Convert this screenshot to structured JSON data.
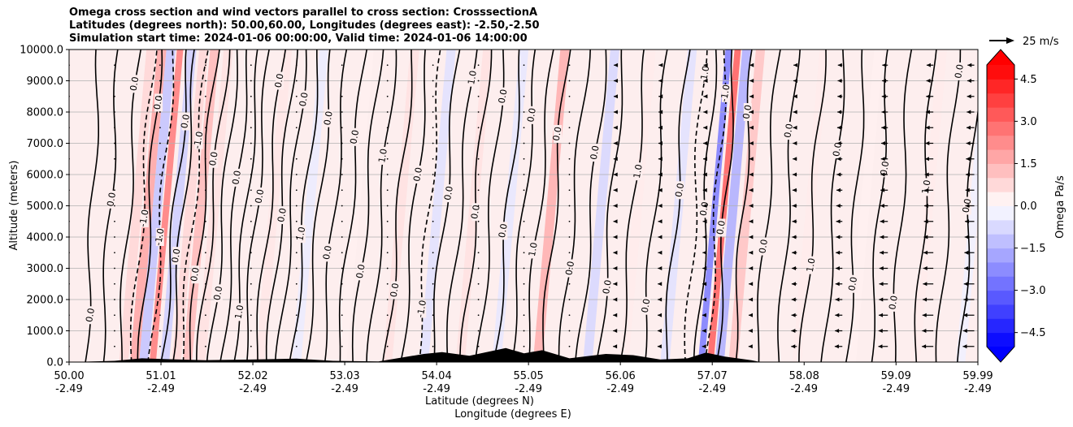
{
  "title": {
    "line1": "Omega cross section and wind vectors parallel to cross section: CrosssectionA",
    "line2": "Latitudes (degrees north): 50.00,60.00, Longitudes (degrees east): -2.50,-2.50",
    "line3": "Simulation start time: 2024-01-06 00:00:00, Valid time: 2024-01-06 14:00:00"
  },
  "chart_data": {
    "type": "heatmap",
    "subtype": "vertical cross section with contour lines and wind vectors",
    "xlabel_line1": "Latitude (degrees N)",
    "xlabel_line2": "Longitude (degrees E)",
    "ylabel": "Altitude (meters)",
    "ylim": [
      0,
      10000
    ],
    "xlim": [
      50.0,
      59.99
    ],
    "y_ticks": [
      0,
      1000,
      2000,
      3000,
      4000,
      5000,
      6000,
      7000,
      8000,
      9000,
      10000
    ],
    "y_tick_labels": [
      "0.0",
      "1000.0",
      "2000.0",
      "3000.0",
      "4000.0",
      "5000.0",
      "6000.0",
      "7000.0",
      "8000.0",
      "9000.0",
      "10000.0"
    ],
    "x_ticks": [
      {
        "lat": 50.0,
        "lat_label": "50.00",
        "lon_label": "-2.49"
      },
      {
        "lat": 51.01,
        "lat_label": "51.01",
        "lon_label": "-2.49"
      },
      {
        "lat": 52.02,
        "lat_label": "52.02",
        "lon_label": "-2.49"
      },
      {
        "lat": 53.03,
        "lat_label": "53.03",
        "lon_label": "-2.49"
      },
      {
        "lat": 54.04,
        "lat_label": "54.04",
        "lon_label": "-2.49"
      },
      {
        "lat": 55.05,
        "lat_label": "55.05",
        "lon_label": "-2.49"
      },
      {
        "lat": 56.06,
        "lat_label": "56.06",
        "lon_label": "-2.49"
      },
      {
        "lat": 57.07,
        "lat_label": "57.07",
        "lon_label": "-2.49"
      },
      {
        "lat": 58.08,
        "lat_label": "58.08",
        "lon_label": "-2.49"
      },
      {
        "lat": 59.09,
        "lat_label": "59.09",
        "lon_label": "-2.49"
      },
      {
        "lat": 59.99,
        "lat_label": "59.99",
        "lon_label": "-2.49"
      }
    ],
    "grid": "horizontal",
    "colorbar": {
      "label": "Omega Pa/s",
      "range": [
        -5.0,
        5.0
      ],
      "extend": "both",
      "ticks": [
        -4.5,
        -3.0,
        -1.5,
        0.0,
        1.5,
        3.0,
        4.5
      ],
      "tick_labels": [
        "−4.5",
        "−3.0",
        "−1.5",
        "0.0",
        "1.5",
        "3.0",
        "4.5"
      ],
      "n_levels": 20,
      "colormap": "bwr"
    },
    "quiver_key": {
      "label": "25 m/s",
      "speed": 25
    },
    "contour_labels": [
      "0.0",
      "1.0",
      "-1.0",
      "2.0"
    ],
    "bands": [
      {
        "lat": 50.6,
        "value": 0.8
      },
      {
        "lat": 50.72,
        "value": 1.8
      },
      {
        "lat": 50.82,
        "value": -1.2
      },
      {
        "lat": 50.92,
        "value": 2.6
      },
      {
        "lat": 51.05,
        "value": -1.0
      },
      {
        "lat": 51.18,
        "value": 0.8
      },
      {
        "lat": 51.3,
        "value": 1.4
      },
      {
        "lat": 51.45,
        "value": 0.6
      },
      {
        "lat": 52.1,
        "value": 0.5
      },
      {
        "lat": 52.5,
        "value": -0.4
      },
      {
        "lat": 53.0,
        "value": 0.3
      },
      {
        "lat": 53.5,
        "value": 0.6
      },
      {
        "lat": 53.9,
        "value": -0.6
      },
      {
        "lat": 54.3,
        "value": 0.6
      },
      {
        "lat": 54.7,
        "value": -0.5
      },
      {
        "lat": 55.15,
        "value": 1.6
      },
      {
        "lat": 55.7,
        "value": -0.8
      },
      {
        "lat": 56.1,
        "value": 0.4
      },
      {
        "lat": 56.55,
        "value": -0.6
      },
      {
        "lat": 56.95,
        "value": -2.6
      },
      {
        "lat": 57.05,
        "value": 3.2
      },
      {
        "lat": 57.15,
        "value": -1.6
      },
      {
        "lat": 57.3,
        "value": 1.2
      },
      {
        "lat": 58.0,
        "value": 0.4
      },
      {
        "lat": 58.6,
        "value": 0.3
      },
      {
        "lat": 59.3,
        "value": 0.4
      },
      {
        "lat": 59.8,
        "value": -0.3
      }
    ],
    "contour_lines": [
      {
        "lat": 50.18,
        "tilt": 0.15,
        "dashed": false
      },
      {
        "lat": 50.35,
        "tilt": 0.2,
        "dashed": false
      },
      {
        "lat": 50.55,
        "tilt": 0.22,
        "dashed": false
      },
      {
        "lat": 50.68,
        "tilt": 0.25,
        "dashed": true
      },
      {
        "lat": 50.78,
        "tilt": 0.22,
        "dashed": false
      },
      {
        "lat": 50.9,
        "tilt": 0.25,
        "dashed": true
      },
      {
        "lat": 51.02,
        "tilt": 0.3,
        "dashed": false
      },
      {
        "lat": 51.12,
        "tilt": 0.28,
        "dashed": false
      },
      {
        "lat": 51.22,
        "tilt": 0.3,
        "dashed": true
      },
      {
        "lat": 51.32,
        "tilt": 0.3,
        "dashed": false
      },
      {
        "lat": 51.42,
        "tilt": 0.32,
        "dashed": false
      },
      {
        "lat": 51.55,
        "tilt": 0.3,
        "dashed": false
      },
      {
        "lat": 51.68,
        "tilt": 0.3,
        "dashed": false
      },
      {
        "lat": 51.8,
        "tilt": 0.3,
        "dashed": false
      },
      {
        "lat": 51.92,
        "tilt": 0.28,
        "dashed": false
      },
      {
        "lat": 52.05,
        "tilt": 0.3,
        "dashed": false
      },
      {
        "lat": 52.18,
        "tilt": 0.3,
        "dashed": false
      },
      {
        "lat": 52.3,
        "tilt": 0.3,
        "dashed": false
      },
      {
        "lat": 52.45,
        "tilt": 0.3,
        "dashed": false
      },
      {
        "lat": 52.6,
        "tilt": 0.3,
        "dashed": false
      },
      {
        "lat": 52.78,
        "tilt": 0.28,
        "dashed": false
      },
      {
        "lat": 52.95,
        "tilt": 0.3,
        "dashed": false
      },
      {
        "lat": 53.12,
        "tilt": 0.3,
        "dashed": false
      },
      {
        "lat": 53.3,
        "tilt": 0.28,
        "dashed": false
      },
      {
        "lat": 53.48,
        "tilt": 0.3,
        "dashed": false
      },
      {
        "lat": 53.65,
        "tilt": 0.3,
        "dashed": false
      },
      {
        "lat": 53.82,
        "tilt": 0.28,
        "dashed": true
      },
      {
        "lat": 53.98,
        "tilt": 0.3,
        "dashed": false
      },
      {
        "lat": 54.15,
        "tilt": 0.3,
        "dashed": false
      },
      {
        "lat": 54.32,
        "tilt": 0.3,
        "dashed": false
      },
      {
        "lat": 54.5,
        "tilt": 0.28,
        "dashed": false
      },
      {
        "lat": 54.68,
        "tilt": 0.3,
        "dashed": false
      },
      {
        "lat": 54.85,
        "tilt": 0.3,
        "dashed": false
      },
      {
        "lat": 55.02,
        "tilt": 0.3,
        "dashed": false
      },
      {
        "lat": 55.2,
        "tilt": 0.28,
        "dashed": false
      },
      {
        "lat": 55.4,
        "tilt": 0.3,
        "dashed": false
      },
      {
        "lat": 55.6,
        "tilt": 0.3,
        "dashed": false
      },
      {
        "lat": 55.82,
        "tilt": 0.28,
        "dashed": false
      },
      {
        "lat": 56.05,
        "tilt": 0.3,
        "dashed": false
      },
      {
        "lat": 56.3,
        "tilt": 0.28,
        "dashed": false
      },
      {
        "lat": 56.55,
        "tilt": 0.25,
        "dashed": false
      },
      {
        "lat": 56.78,
        "tilt": 0.2,
        "dashed": true
      },
      {
        "lat": 56.9,
        "tilt": 0.2,
        "dashed": false
      },
      {
        "lat": 57.02,
        "tilt": 0.2,
        "dashed": true
      },
      {
        "lat": 57.12,
        "tilt": 0.2,
        "dashed": false
      },
      {
        "lat": 57.3,
        "tilt": 0.22,
        "dashed": false
      },
      {
        "lat": 57.55,
        "tilt": 0.25,
        "dashed": false
      },
      {
        "lat": 57.8,
        "tilt": 0.2,
        "dashed": false
      },
      {
        "lat": 58.05,
        "tilt": 0.25,
        "dashed": false
      },
      {
        "lat": 58.3,
        "tilt": 0.22,
        "dashed": false
      },
      {
        "lat": 58.55,
        "tilt": 0.2,
        "dashed": false
      },
      {
        "lat": 58.8,
        "tilt": 0.22,
        "dashed": false
      },
      {
        "lat": 59.05,
        "tilt": 0.2,
        "dashed": false
      },
      {
        "lat": 59.3,
        "tilt": 0.2,
        "dashed": false
      },
      {
        "lat": 59.55,
        "tilt": 0.22,
        "dashed": false
      },
      {
        "lat": 59.8,
        "tilt": 0.2,
        "dashed": false
      }
    ],
    "terrain": [
      {
        "lat": 50.0,
        "alt": 0
      },
      {
        "lat": 50.5,
        "alt": 40
      },
      {
        "lat": 50.8,
        "alt": 120
      },
      {
        "lat": 51.1,
        "alt": 90
      },
      {
        "lat": 51.5,
        "alt": 60
      },
      {
        "lat": 52.0,
        "alt": 80
      },
      {
        "lat": 52.5,
        "alt": 110
      },
      {
        "lat": 52.9,
        "alt": 40
      },
      {
        "lat": 53.4,
        "alt": 20
      },
      {
        "lat": 53.9,
        "alt": 260
      },
      {
        "lat": 54.1,
        "alt": 320
      },
      {
        "lat": 54.4,
        "alt": 200
      },
      {
        "lat": 54.8,
        "alt": 450
      },
      {
        "lat": 55.0,
        "alt": 280
      },
      {
        "lat": 55.2,
        "alt": 380
      },
      {
        "lat": 55.5,
        "alt": 120
      },
      {
        "lat": 55.9,
        "alt": 260
      },
      {
        "lat": 56.2,
        "alt": 220
      },
      {
        "lat": 56.5,
        "alt": 80
      },
      {
        "lat": 56.8,
        "alt": 120
      },
      {
        "lat": 57.0,
        "alt": 300
      },
      {
        "lat": 57.2,
        "alt": 180
      },
      {
        "lat": 57.5,
        "alt": 60
      },
      {
        "lat": 57.6,
        "alt": 0
      },
      {
        "lat": 59.99,
        "alt": 0
      }
    ],
    "wind_columns": [
      {
        "lat": 50.0,
        "u": 0.5
      },
      {
        "lat": 50.5,
        "u": 0.5
      },
      {
        "lat": 51.0,
        "u": 0.5
      },
      {
        "lat": 51.5,
        "u": 0.5
      },
      {
        "lat": 52.0,
        "u": 0.5
      },
      {
        "lat": 52.5,
        "u": 0.5
      },
      {
        "lat": 53.0,
        "u": 0.5
      },
      {
        "lat": 53.5,
        "u": 0.5
      },
      {
        "lat": 54.0,
        "u": 0.5
      },
      {
        "lat": 54.5,
        "u": 0.5
      },
      {
        "lat": 55.0,
        "u": 0.5
      },
      {
        "lat": 55.5,
        "u": -1
      },
      {
        "lat": 56.0,
        "u": -2
      },
      {
        "lat": 56.5,
        "u": -3
      },
      {
        "lat": 57.0,
        "u": -4
      },
      {
        "lat": 57.5,
        "u": -3
      },
      {
        "lat": 58.0,
        "u": -6
      },
      {
        "lat": 58.5,
        "u": -8
      },
      {
        "lat": 59.0,
        "u": -10
      },
      {
        "lat": 59.5,
        "u": -12
      },
      {
        "lat": 59.95,
        "u": -12
      }
    ]
  }
}
